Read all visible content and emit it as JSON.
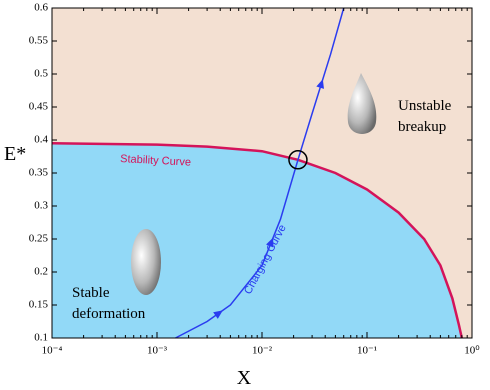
{
  "chart_data": {
    "type": "line",
    "xlabel": "X",
    "ylabel": "E*",
    "xscale": "log",
    "xlim": [
      0.0001,
      1
    ],
    "ylim": [
      0.1,
      0.6
    ],
    "xticks": [
      {
        "value": 0.0001,
        "label": "10⁻⁴"
      },
      {
        "value": 0.001,
        "label": "10⁻³"
      },
      {
        "value": 0.01,
        "label": "10⁻²"
      },
      {
        "value": 0.1,
        "label": "10⁻¹"
      },
      {
        "value": 1,
        "label": "10⁰"
      }
    ],
    "yticks": [
      0.1,
      0.15,
      0.2,
      0.25,
      0.3,
      0.35,
      0.4,
      0.45,
      0.5,
      0.55,
      0.6
    ],
    "stable_color": "#92d9f7",
    "unstable_color": "#f3e0d2",
    "series": [
      {
        "name": "Stability Curve",
        "color": "#d4145a",
        "x": [
          0.0001,
          0.001,
          0.003,
          0.01,
          0.022,
          0.05,
          0.1,
          0.2,
          0.35,
          0.5,
          0.65,
          0.75,
          0.8
        ],
        "values": [
          0.395,
          0.393,
          0.39,
          0.383,
          0.37,
          0.35,
          0.325,
          0.29,
          0.25,
          0.21,
          0.16,
          0.12,
          0.1
        ]
      },
      {
        "name": "Charging Curve",
        "color": "#2a3cf0",
        "x": [
          0.0015,
          0.003,
          0.005,
          0.01,
          0.015,
          0.022,
          0.03,
          0.045,
          0.06
        ],
        "values": [
          0.1,
          0.125,
          0.15,
          0.21,
          0.28,
          0.37,
          0.44,
          0.53,
          0.6
        ]
      }
    ],
    "annotations": [
      [
        "Stable",
        "deformation"
      ],
      [
        "Unstable",
        "breakup"
      ]
    ]
  }
}
